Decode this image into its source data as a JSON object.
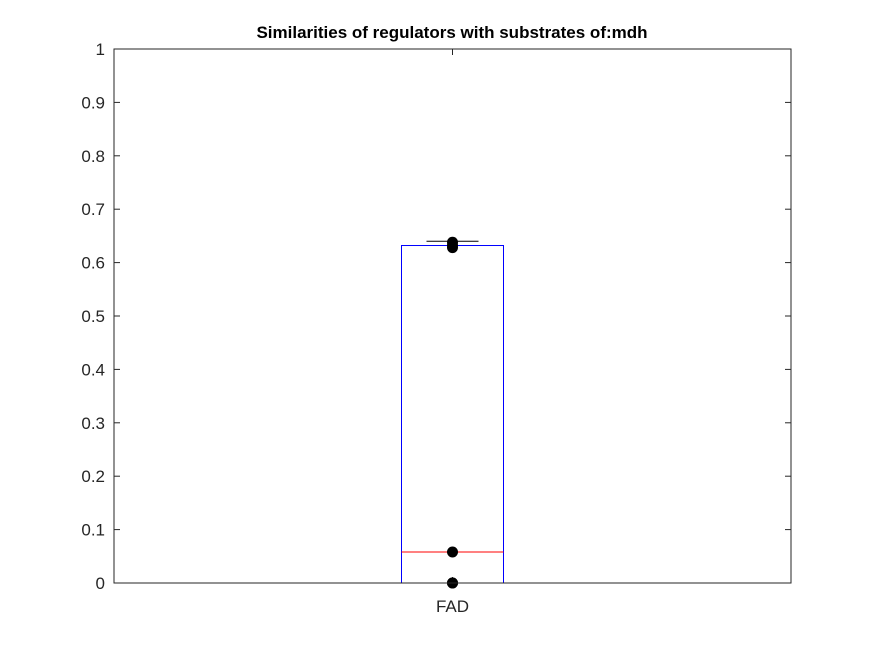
{
  "chart_data": {
    "type": "box",
    "title": "Similarities of regulators with substrates of:mdh",
    "xlabel": "",
    "ylabel": "",
    "ylim": [
      0,
      1
    ],
    "y_ticks": [
      0,
      0.1,
      0.2,
      0.3,
      0.4,
      0.5,
      0.6,
      0.7,
      0.8,
      0.9,
      1
    ],
    "y_tick_labels": [
      "0",
      "0.1",
      "0.2",
      "0.3",
      "0.4",
      "0.5",
      "0.6",
      "0.7",
      "0.8",
      "0.9",
      "1"
    ],
    "categories": [
      "FAD"
    ],
    "boxes": [
      {
        "category": "FAD",
        "whisker_low": 0,
        "q1": 0,
        "median": 0.058,
        "q3": 0.632,
        "whisker_high": 0.64,
        "points": [
          0,
          0,
          0.058,
          0.628,
          0.632,
          0.638
        ]
      }
    ],
    "grid": false,
    "legend": "none",
    "colors": {
      "box": "#0000ff",
      "median": "#ff0000",
      "whisker": "#000000",
      "points": "#000000",
      "axis": "#262626"
    }
  }
}
